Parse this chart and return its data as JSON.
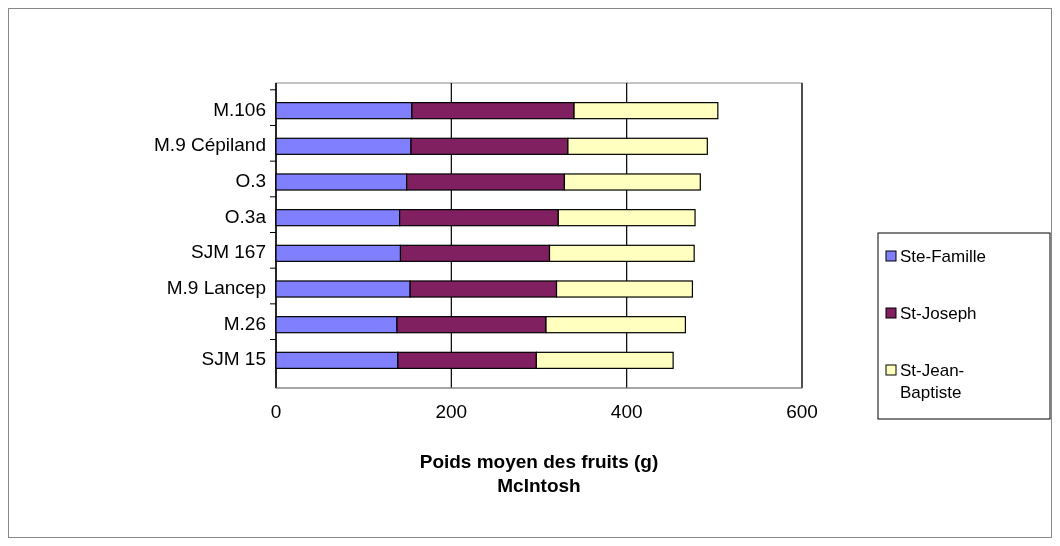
{
  "chart_data": {
    "type": "bar",
    "orientation": "horizontal",
    "stacked": true,
    "xlabel": "Poids moyen des fruits (g)\nMcIntosh",
    "categories": [
      "M.106",
      "M.9 Cépiland",
      "O.3",
      "O.3a",
      "SJM 167",
      "M.9 Lancep",
      "M.26",
      "SJM 15"
    ],
    "series": [
      {
        "name": "Ste-Famille",
        "color": "#8080ff",
        "values": [
          155,
          154,
          149,
          141,
          142,
          153,
          138,
          139
        ]
      },
      {
        "name": "St-Joseph",
        "color": "#802060",
        "values": [
          185,
          179,
          180,
          181,
          170,
          167,
          170,
          158
        ]
      },
      {
        "name": "St-Jean-Baptiste",
        "color": "#ffffc0",
        "values": [
          164,
          159,
          155,
          156,
          165,
          155,
          159,
          156
        ]
      }
    ],
    "xlim": [
      0,
      600
    ],
    "xticks": [
      0,
      200,
      400,
      600
    ],
    "grid": "x",
    "legend": "right"
  }
}
